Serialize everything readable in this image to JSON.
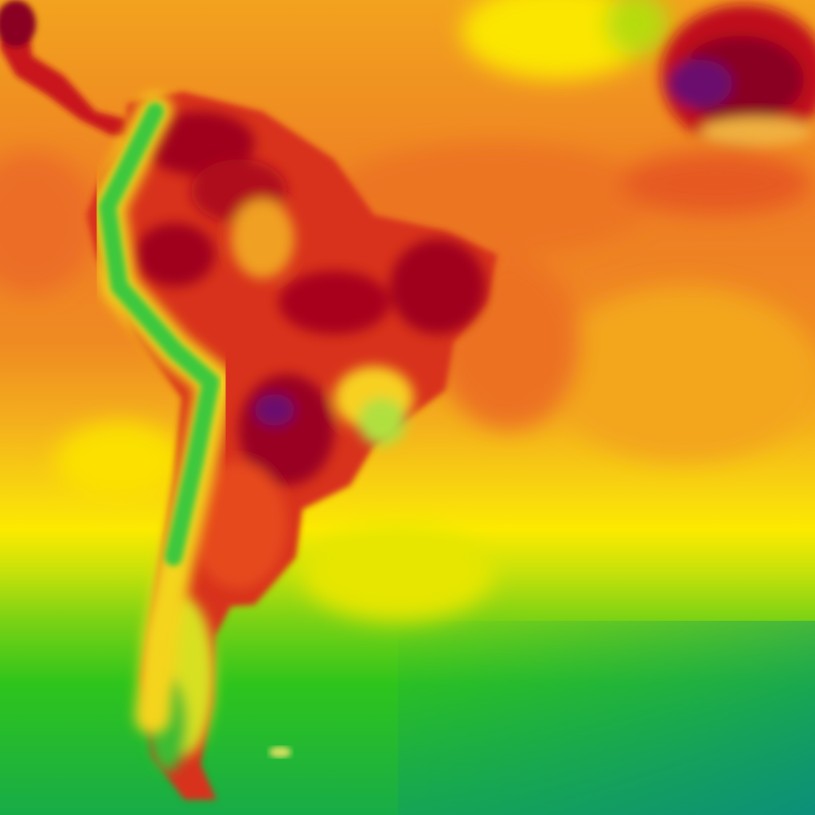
{
  "map": {
    "colors": {
      "hot_extreme": "#6a0a6e",
      "very_hot": "#a0001a",
      "hot": "#d92a1a",
      "warm": "#ef7f22",
      "mild": "#f3b51e",
      "temperate": "#fbe600",
      "cool": "#9cdc10",
      "cold": "#22c21a",
      "colder": "#0e9a6c"
    }
  }
}
